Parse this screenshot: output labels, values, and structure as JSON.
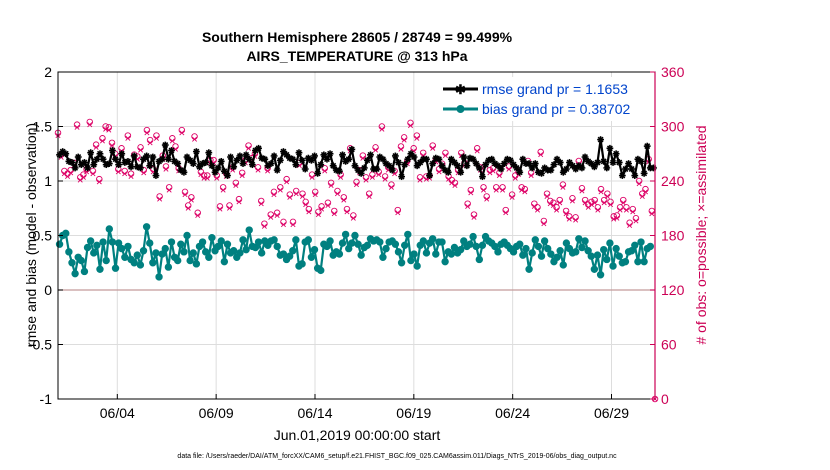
{
  "chart_data": {
    "type": "line",
    "title_line1": "Southern Hemisphere 28605 / 28749 = 99.499%",
    "title_line2": "AIRS_TEMPERATURE @ 313 hPa",
    "ylabel_left": "rmse and bias (model - observation)",
    "ylabel_right": "# of obs: o=possible; ×=assimilated",
    "xlabel": "Jun.01,2019 00:00:00 start",
    "footer": "data file: /Users/raeder/DAI/ATM_forcXX/CAM6_setup/f.e21.FHIST_BGC.f09_025.CAM6assim.011/Diags_NTrS_2019-06/obs_diag_output.nc",
    "ylim_left": [
      -1,
      2
    ],
    "ylim_right": [
      0,
      360
    ],
    "xlim": [
      1,
      31.2
    ],
    "left_ticks": [
      "-1",
      "-0.5",
      "0",
      "0.5",
      "1",
      "1.5",
      "2"
    ],
    "right_ticks": [
      "0",
      "60",
      "120",
      "180",
      "240",
      "300",
      "360"
    ],
    "x_ticks": [
      {
        "x": 4,
        "label": "06/04"
      },
      {
        "x": 9,
        "label": "06/09"
      },
      {
        "x": 14,
        "label": "06/14"
      },
      {
        "x": 19,
        "label": "06/19"
      },
      {
        "x": 24,
        "label": "06/24"
      },
      {
        "x": 29,
        "label": "06/29"
      }
    ],
    "grid": true,
    "legend_position": "top-right",
    "colors": {
      "rmse": "#000000",
      "bias": "#008080",
      "obs": "#dd0066",
      "zero_line": "#c49a9a",
      "grid": "#dddddd",
      "right_axis": "#cc0055",
      "legend_text": "#0044cc"
    },
    "series": [
      {
        "name": "rmse grand pr = 1.1653",
        "key": "rmse",
        "values": [
          1.24,
          1.27,
          1.25,
          1.18,
          1.17,
          1.12,
          1.22,
          1.15,
          1.17,
          1.12,
          1.26,
          1.15,
          1.2,
          1.25,
          1.2,
          1.15,
          1.16,
          1.28,
          1.2,
          1.15,
          1.25,
          1.17,
          1.18,
          1.13,
          1.23,
          1.13,
          1.12,
          1.2,
          1.23,
          1.14,
          1.22,
          1.05,
          1.18,
          1.2,
          1.33,
          1.2,
          1.28,
          1.18,
          1.16,
          1.1,
          1.08,
          1.22,
          1.19,
          1.16,
          1.27,
          1.13,
          1.16,
          1.17,
          1.26,
          1.14,
          1.08,
          1.12,
          1.18,
          1.09,
          1.05,
          1.22,
          1.13,
          1.19,
          1.23,
          1.16,
          1.24,
          1.2,
          1.15,
          1.28,
          1.3,
          1.21,
          1.2,
          1.14,
          1.16,
          1.23,
          1.1,
          1.19,
          1.27,
          1.24,
          1.21,
          1.2,
          1.15,
          1.26,
          1.19,
          1.11,
          1.21,
          1.19,
          1.23,
          1.07,
          1.15,
          1.24,
          1.2,
          1.25,
          1.14,
          1.1,
          1.09,
          1.24,
          1.18,
          1.2,
          1.29,
          1.14,
          1.1,
          1.07,
          1.12,
          1.19,
          1.24,
          1.11,
          1.11,
          1.22,
          1.2,
          1.16,
          1.14,
          1.1,
          1.23,
          1.17,
          1.04,
          1.15,
          1.2,
          1.25,
          1.22,
          1.14,
          1.17,
          1.2,
          1.2,
          1.05,
          1.16,
          1.21,
          1.2,
          1.14,
          1.1,
          1.08,
          1.2,
          1.17,
          1.14,
          1.08,
          1.22,
          1.14,
          1.21,
          1.2,
          1.16,
          1.12,
          1.04,
          1.15,
          1.19,
          1.2,
          1.16,
          1.14,
          1.11,
          1.16,
          1.2,
          1.19,
          1.15,
          1.12,
          1.08,
          1.2,
          1.16,
          1.16,
          1.12,
          1.16,
          1.08,
          1.07,
          1.12,
          1.1,
          1.1,
          1.15,
          1.2,
          1.17,
          1.08,
          1.11,
          1.17,
          1.14,
          1.11,
          1.14,
          1.12,
          1.22,
          1.18,
          1.16,
          1.13,
          1.17,
          1.38,
          1.18,
          1.12,
          1.3,
          1.17,
          1.25,
          1.17,
          1.05,
          1.11,
          1.16,
          1.11,
          1.05,
          1.2,
          1.18,
          1.07,
          1.32,
          1.12,
          1.12
        ]
      },
      {
        "name": "bias grand pr = 0.38702",
        "key": "bias",
        "values": [
          0.42,
          0.5,
          0.52,
          0.35,
          0.25,
          0.15,
          0.3,
          0.27,
          0.17,
          0.39,
          0.45,
          0.34,
          0.41,
          0.19,
          0.44,
          0.27,
          0.56,
          0.44,
          0.2,
          0.43,
          0.38,
          0.3,
          0.4,
          0.28,
          0.25,
          0.32,
          0.23,
          0.36,
          0.58,
          0.43,
          0.25,
          0.34,
          0.12,
          0.33,
          0.38,
          0.21,
          0.44,
          0.3,
          0.27,
          0.42,
          0.35,
          0.5,
          0.27,
          0.34,
          0.24,
          0.4,
          0.44,
          0.35,
          0.3,
          0.48,
          0.36,
          0.4,
          0.45,
          0.26,
          0.42,
          0.34,
          0.36,
          0.3,
          0.34,
          0.46,
          0.37,
          0.55,
          0.4,
          0.39,
          0.44,
          0.34,
          0.45,
          0.41,
          0.45,
          0.46,
          0.4,
          0.32,
          0.33,
          0.28,
          0.31,
          0.36,
          0.46,
          0.22,
          0.24,
          0.44,
          0.46,
          0.3,
          0.37,
          0.2,
          0.18,
          0.42,
          0.4,
          0.45,
          0.32,
          0.35,
          0.33,
          0.43,
          0.51,
          0.38,
          0.43,
          0.5,
          0.42,
          0.32,
          0.39,
          0.41,
          0.47,
          0.45,
          0.46,
          0.44,
          0.3,
          0.38,
          0.44,
          0.45,
          0.42,
          0.35,
          0.25,
          0.41,
          0.51,
          0.27,
          0.33,
          0.22,
          0.41,
          0.45,
          0.34,
          0.43,
          0.47,
          0.33,
          0.44,
          0.44,
          0.26,
          0.35,
          0.33,
          0.39,
          0.34,
          0.37,
          0.45,
          0.4,
          0.42,
          0.49,
          0.4,
          0.28,
          0.41,
          0.49,
          0.45,
          0.43,
          0.4,
          0.35,
          0.42,
          0.44,
          0.41,
          0.38,
          0.35,
          0.4,
          0.42,
          0.32,
          0.38,
          0.19,
          0.34,
          0.46,
          0.4,
          0.31,
          0.45,
          0.38,
          0.33,
          0.26,
          0.3,
          0.36,
          0.23,
          0.43,
          0.38,
          0.34,
          0.35,
          0.47,
          0.39,
          0.45,
          0.36,
          0.31,
          0.19,
          0.32,
          0.14,
          0.37,
          0.28,
          0.43,
          0.22,
          0.38,
          0.31,
          0.25,
          0.26,
          0.35,
          0.36,
          0.41,
          0.26,
          0.44,
          0.26,
          0.38,
          0.4
        ]
      }
    ],
    "obs_note": "possible and assimilated counts at each analysis time (right axis)",
    "obs_possible": [
      293,
      269,
      251,
      248,
      252,
      260,
      302,
      244,
      247,
      253,
      305,
      251,
      280,
      242,
      287,
      300,
      299,
      282,
      270,
      253,
      276,
      251,
      290,
      248,
      269,
      267,
      277,
      252,
      296,
      285,
      253,
      290,
      223,
      268,
      256,
      233,
      287,
      278,
      254,
      296,
      228,
      213,
      222,
      289,
      205,
      250,
      246,
      246,
      263,
      263,
      246,
      212,
      233,
      248,
      213,
      255,
      238,
      220,
      249,
      263,
      279,
      265,
      270,
      255,
      218,
      193,
      254,
      203,
      228,
      205,
      233,
      195,
      242,
      225,
      195,
      229,
      260,
      226,
      217,
      209,
      247,
      228,
      206,
      212,
      254,
      216,
      238,
      207,
      229,
      247,
      222,
      209,
      276,
      202,
      239,
      252,
      268,
      244,
      226,
      247,
      277,
      250,
      300,
      245,
      255,
      236,
      251,
      208,
      278,
      288,
      262,
      304,
      276,
      290,
      244,
      271,
      245,
      246,
      279,
      264,
      253,
      259,
      271,
      245,
      241,
      238,
      252,
      271,
      260,
      215,
      230,
      203,
      276,
      255,
      233,
      223,
      252,
      254,
      233,
      249,
      233,
      208,
      256,
      225,
      246,
      250,
      233,
      231,
      262,
      249,
      215,
      211,
      272,
      196,
      226,
      218,
      216,
      211,
      219,
      236,
      207,
      201,
      221,
      200,
      262,
      232,
      219,
      214,
      217,
      219,
      211,
      231,
      219,
      226,
      217,
      201,
      202,
      211,
      219,
      211,
      194,
      209,
      199,
      240,
      226,
      231,
      264,
      207,
      0
    ],
    "obs_assimilated": [
      290,
      266,
      248,
      245,
      249,
      257,
      299,
      241,
      244,
      250,
      302,
      248,
      277,
      239,
      284,
      297,
      296,
      279,
      267,
      250,
      273,
      248,
      287,
      245,
      266,
      264,
      274,
      249,
      293,
      282,
      250,
      287,
      220,
      265,
      253,
      230,
      284,
      275,
      251,
      293,
      225,
      210,
      219,
      286,
      202,
      247,
      243,
      243,
      260,
      260,
      243,
      209,
      230,
      245,
      210,
      252,
      235,
      217,
      246,
      260,
      276,
      262,
      267,
      252,
      215,
      190,
      251,
      200,
      225,
      202,
      230,
      192,
      239,
      222,
      192,
      226,
      257,
      223,
      214,
      206,
      244,
      225,
      203,
      209,
      251,
      213,
      235,
      204,
      226,
      244,
      219,
      206,
      273,
      199,
      236,
      249,
      265,
      241,
      223,
      244,
      274,
      247,
      297,
      242,
      252,
      233,
      248,
      205,
      275,
      285,
      259,
      301,
      273,
      287,
      241,
      268,
      242,
      243,
      276,
      261,
      250,
      256,
      268,
      242,
      238,
      235,
      249,
      268,
      257,
      212,
      227,
      200,
      273,
      252,
      230,
      220,
      249,
      251,
      230,
      246,
      230,
      205,
      253,
      222,
      243,
      247,
      230,
      228,
      259,
      246,
      212,
      208,
      269,
      193,
      223,
      215,
      213,
      208,
      216,
      233,
      204,
      198,
      218,
      197,
      259,
      229,
      216,
      211,
      214,
      216,
      208,
      228,
      216,
      223,
      214,
      198,
      199,
      208,
      216,
      208,
      191,
      206,
      196,
      237,
      223,
      228,
      261,
      204,
      0
    ]
  }
}
